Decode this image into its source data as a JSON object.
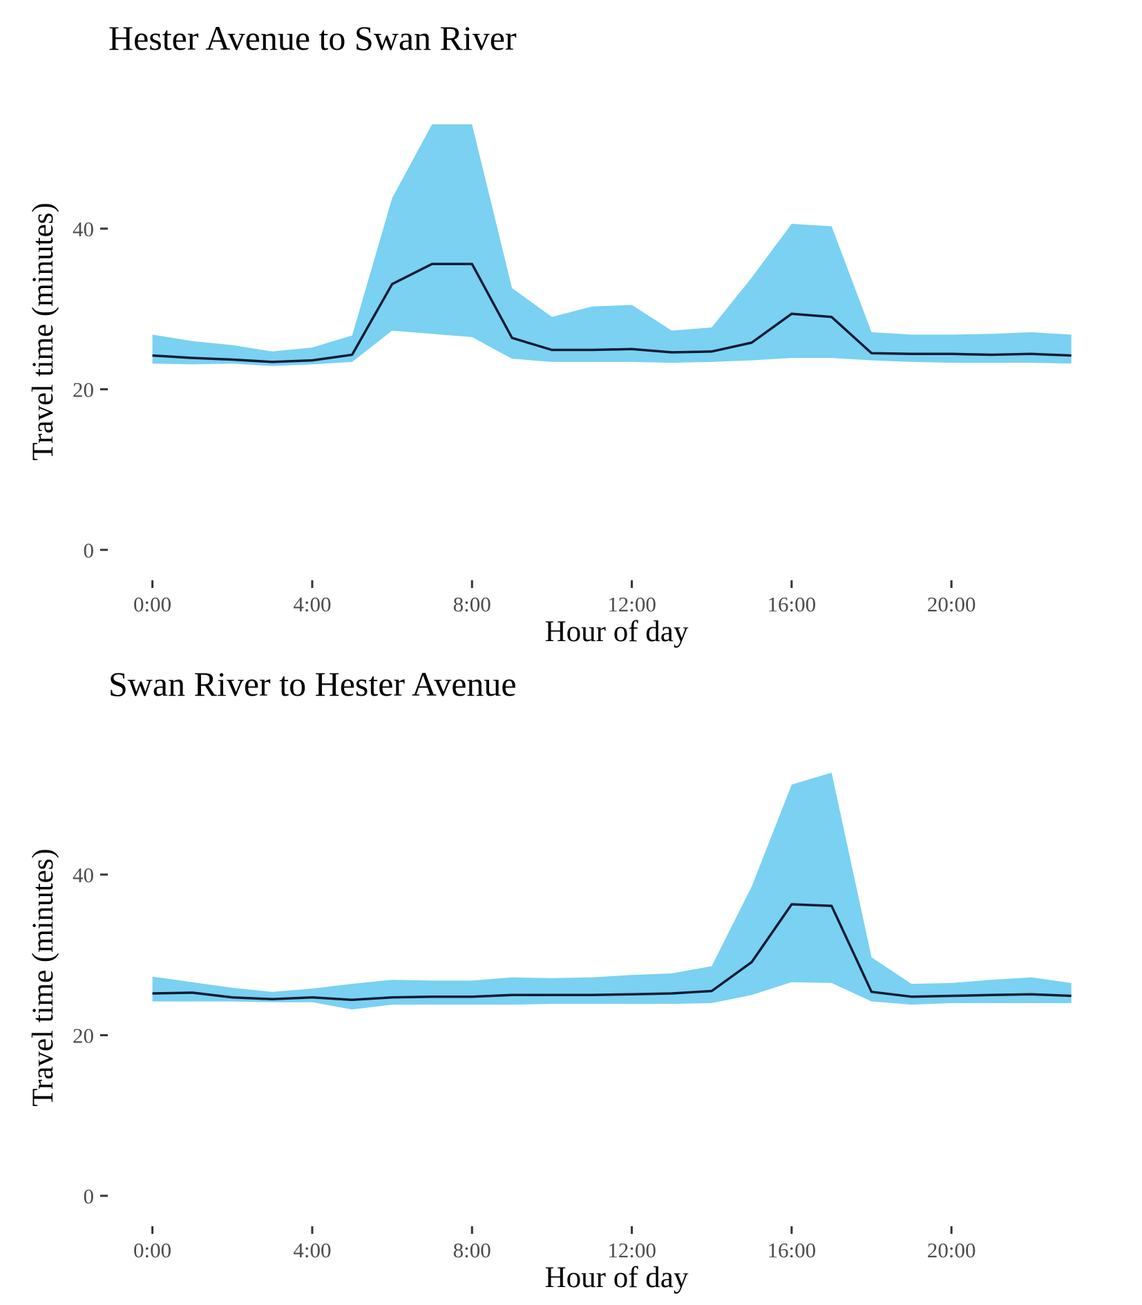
{
  "chart_data": [
    {
      "type": "line",
      "title": "Hester Avenue to Swan River",
      "xlabel": "Hour of day",
      "ylabel": "Travel time (minutes)",
      "x": [
        0,
        1,
        2,
        3,
        4,
        5,
        6,
        7,
        8,
        9,
        10,
        11,
        12,
        13,
        14,
        15,
        16,
        17,
        18,
        19,
        20,
        21,
        22,
        23
      ],
      "xticks": [
        0,
        4,
        8,
        12,
        16,
        20
      ],
      "xtick_labels": [
        "0:00",
        "4:00",
        "8:00",
        "12:00",
        "16:00",
        "20:00"
      ],
      "yticks": [
        0,
        20,
        40
      ],
      "ytick_labels": [
        "0",
        "20",
        "40"
      ],
      "xlim": [
        -1.1,
        23.3
      ],
      "ylim": [
        -2.5,
        56
      ],
      "grid": false,
      "band_color": "#7ad1f2",
      "line_color": "#0d1b33",
      "series": [
        {
          "role": "upper",
          "values": [
            26.8,
            26.0,
            25.5,
            24.7,
            25.2,
            26.7,
            43.8,
            53.0,
            53.0,
            32.6,
            29.0,
            30.3,
            30.5,
            27.3,
            27.7,
            33.9,
            40.6,
            40.3,
            27.1,
            26.8,
            26.8,
            26.9,
            27.1,
            26.8
          ]
        },
        {
          "role": "median",
          "values": [
            24.2,
            23.9,
            23.7,
            23.4,
            23.6,
            24.3,
            33.1,
            35.6,
            35.6,
            26.4,
            24.9,
            24.9,
            25.0,
            24.6,
            24.7,
            25.8,
            29.4,
            29.0,
            24.5,
            24.4,
            24.4,
            24.3,
            24.4,
            24.2
          ]
        },
        {
          "role": "lower",
          "values": [
            23.2,
            23.1,
            23.2,
            22.9,
            23.1,
            23.4,
            27.3,
            26.9,
            26.5,
            23.8,
            23.4,
            23.4,
            23.4,
            23.3,
            23.4,
            23.6,
            23.9,
            23.9,
            23.6,
            23.4,
            23.3,
            23.3,
            23.3,
            23.2
          ]
        }
      ]
    },
    {
      "type": "line",
      "title": "Swan River to Hester Avenue",
      "xlabel": "Hour of day",
      "ylabel": "Travel time (minutes)",
      "x": [
        0,
        1,
        2,
        3,
        4,
        5,
        6,
        7,
        8,
        9,
        10,
        11,
        12,
        13,
        14,
        15,
        16,
        17,
        18,
        19,
        20,
        21,
        22,
        23
      ],
      "xticks": [
        0,
        4,
        8,
        12,
        16,
        20
      ],
      "xtick_labels": [
        "0:00",
        "4:00",
        "8:00",
        "12:00",
        "16:00",
        "20:00"
      ],
      "yticks": [
        0,
        20,
        40
      ],
      "ytick_labels": [
        "0",
        "20",
        "40"
      ],
      "xlim": [
        -1.1,
        23.3
      ],
      "ylim": [
        -2.5,
        56
      ],
      "grid": false,
      "band_color": "#7ad1f2",
      "line_color": "#0d1b33",
      "series": [
        {
          "role": "upper",
          "values": [
            27.3,
            26.6,
            25.9,
            25.4,
            25.8,
            26.4,
            26.9,
            26.8,
            26.8,
            27.2,
            27.1,
            27.2,
            27.5,
            27.7,
            28.6,
            38.5,
            51.2,
            52.7,
            29.7,
            26.4,
            26.5,
            26.9,
            27.2,
            26.5
          ]
        },
        {
          "role": "median",
          "values": [
            25.2,
            25.3,
            24.7,
            24.5,
            24.7,
            24.4,
            24.7,
            24.8,
            24.8,
            25.0,
            25.0,
            25.0,
            25.1,
            25.2,
            25.5,
            29.1,
            36.3,
            36.1,
            25.4,
            24.8,
            24.9,
            25.0,
            25.1,
            24.9
          ]
        },
        {
          "role": "lower",
          "values": [
            24.2,
            24.2,
            24.2,
            24.1,
            24.1,
            23.2,
            23.8,
            23.8,
            23.8,
            23.8,
            23.9,
            23.9,
            23.9,
            23.9,
            24.0,
            25.0,
            26.6,
            26.5,
            24.2,
            23.8,
            24.0,
            24.0,
            24.0,
            24.0
          ]
        }
      ]
    }
  ]
}
